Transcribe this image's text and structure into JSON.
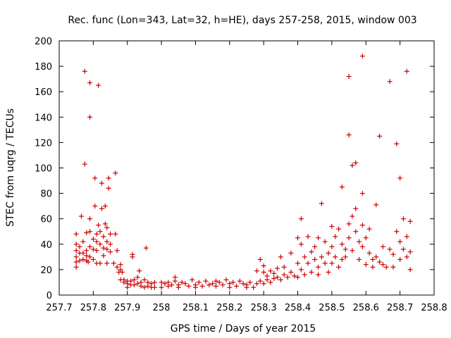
{
  "chart_data": {
    "type": "scatter",
    "title": "Rec. func (Lon=343, Lat=32, h=HE), days 257-258, 2015, window 003",
    "xlabel": "GPS time / Days of year 2015",
    "ylabel": "STEC from uqrg / TECUs",
    "xlim": [
      257.7,
      258.8
    ],
    "ylim": [
      0,
      200
    ],
    "xticks": [
      "257.7",
      "257.8",
      "257.9",
      "258",
      "258.1",
      "258.2",
      "258.3",
      "258.4",
      "258.5",
      "258.6",
      "258.7",
      "258.8"
    ],
    "yticks": [
      "0",
      "20",
      "40",
      "60",
      "80",
      "100",
      "120",
      "140",
      "160",
      "180",
      "200"
    ],
    "grid": false,
    "marker": "+",
    "color": "#cc0000",
    "series": [
      {
        "values": [
          [
            257.75,
            48
          ],
          [
            257.75,
            40
          ],
          [
            257.75,
            35
          ],
          [
            257.75,
            30
          ],
          [
            257.75,
            26
          ],
          [
            257.75,
            22
          ],
          [
            257.76,
            38
          ],
          [
            257.76,
            33
          ],
          [
            257.76,
            27
          ],
          [
            257.765,
            62
          ],
          [
            257.77,
            42
          ],
          [
            257.77,
            33
          ],
          [
            257.77,
            28
          ],
          [
            257.775,
            176
          ],
          [
            257.775,
            103
          ],
          [
            257.78,
            49
          ],
          [
            257.78,
            35
          ],
          [
            257.78,
            31
          ],
          [
            257.78,
            27
          ],
          [
            257.785,
            26
          ],
          [
            257.79,
            167
          ],
          [
            257.79,
            140
          ],
          [
            257.79,
            60
          ],
          [
            257.79,
            50
          ],
          [
            257.79,
            38
          ],
          [
            257.79,
            30
          ],
          [
            257.8,
            44
          ],
          [
            257.8,
            36
          ],
          [
            257.8,
            28
          ],
          [
            257.805,
            92
          ],
          [
            257.805,
            70
          ],
          [
            257.81,
            48
          ],
          [
            257.81,
            42
          ],
          [
            257.81,
            35
          ],
          [
            257.81,
            25
          ],
          [
            257.815,
            165
          ],
          [
            257.815,
            55
          ],
          [
            257.82,
            50
          ],
          [
            257.82,
            40
          ],
          [
            257.82,
            25
          ],
          [
            257.825,
            88
          ],
          [
            257.825,
            68
          ],
          [
            257.83,
            46
          ],
          [
            257.83,
            37
          ],
          [
            257.83,
            31
          ],
          [
            257.835,
            70
          ],
          [
            257.835,
            56
          ],
          [
            257.84,
            53
          ],
          [
            257.84,
            42
          ],
          [
            257.84,
            36
          ],
          [
            257.84,
            25
          ],
          [
            257.845,
            92
          ],
          [
            257.845,
            84
          ],
          [
            257.85,
            48
          ],
          [
            257.85,
            40
          ],
          [
            257.85,
            34
          ],
          [
            257.86,
            25
          ],
          [
            257.865,
            96
          ],
          [
            257.865,
            48
          ],
          [
            257.87,
            35
          ],
          [
            257.87,
            22
          ],
          [
            257.875,
            18
          ],
          [
            257.88,
            24
          ],
          [
            257.88,
            20
          ],
          [
            257.88,
            12
          ],
          [
            257.885,
            18
          ],
          [
            257.89,
            12
          ],
          [
            257.89,
            10
          ],
          [
            257.9,
            11
          ],
          [
            257.9,
            9
          ],
          [
            257.9,
            6
          ],
          [
            257.91,
            11
          ],
          [
            257.91,
            8
          ],
          [
            257.915,
            32
          ],
          [
            257.915,
            30
          ],
          [
            257.92,
            12
          ],
          [
            257.92,
            8
          ],
          [
            257.93,
            14
          ],
          [
            257.93,
            9
          ],
          [
            257.935,
            19
          ],
          [
            257.94,
            10
          ],
          [
            257.94,
            7
          ],
          [
            257.95,
            12
          ],
          [
            257.95,
            6
          ],
          [
            257.955,
            37
          ],
          [
            257.96,
            10
          ],
          [
            257.96,
            7
          ],
          [
            257.97,
            9
          ],
          [
            257.97,
            6
          ],
          [
            257.98,
            10
          ],
          [
            257.98,
            6
          ],
          [
            258.0,
            10
          ],
          [
            258.0,
            6
          ],
          [
            258.01,
            9
          ],
          [
            258.02,
            10
          ],
          [
            258.02,
            7
          ],
          [
            258.03,
            8
          ],
          [
            258.04,
            11
          ],
          [
            258.04,
            14
          ],
          [
            258.05,
            8
          ],
          [
            258.05,
            6
          ],
          [
            258.06,
            10
          ],
          [
            258.07,
            9
          ],
          [
            258.08,
            7
          ],
          [
            258.09,
            12
          ],
          [
            258.1,
            8
          ],
          [
            258.1,
            6
          ],
          [
            258.11,
            10
          ],
          [
            258.12,
            7
          ],
          [
            258.13,
            11
          ],
          [
            258.14,
            8
          ],
          [
            258.15,
            9
          ],
          [
            258.16,
            11
          ],
          [
            258.16,
            7
          ],
          [
            258.17,
            10
          ],
          [
            258.18,
            8
          ],
          [
            258.19,
            12
          ],
          [
            258.2,
            9
          ],
          [
            258.2,
            6
          ],
          [
            258.21,
            10
          ],
          [
            258.22,
            7
          ],
          [
            258.23,
            11
          ],
          [
            258.24,
            9
          ],
          [
            258.25,
            8
          ],
          [
            258.25,
            6
          ],
          [
            258.26,
            10
          ],
          [
            258.27,
            6
          ],
          [
            258.28,
            9
          ],
          [
            258.28,
            19
          ],
          [
            258.29,
            11
          ],
          [
            258.29,
            28
          ],
          [
            258.3,
            9
          ],
          [
            258.3,
            23
          ],
          [
            258.3,
            18
          ],
          [
            258.31,
            12
          ],
          [
            258.31,
            15
          ],
          [
            258.32,
            10
          ],
          [
            258.32,
            19
          ],
          [
            258.33,
            13
          ],
          [
            258.33,
            17
          ],
          [
            258.34,
            21
          ],
          [
            258.34,
            14
          ],
          [
            258.35,
            30
          ],
          [
            258.35,
            12
          ],
          [
            258.36,
            16
          ],
          [
            258.36,
            22
          ],
          [
            258.37,
            14
          ],
          [
            258.38,
            33
          ],
          [
            258.38,
            18
          ],
          [
            258.39,
            15
          ],
          [
            258.4,
            25
          ],
          [
            258.4,
            45
          ],
          [
            258.4,
            14
          ],
          [
            258.41,
            60
          ],
          [
            258.41,
            40
          ],
          [
            258.41,
            20
          ],
          [
            258.42,
            16
          ],
          [
            258.42,
            30
          ],
          [
            258.43,
            25
          ],
          [
            258.43,
            46
          ],
          [
            258.44,
            34
          ],
          [
            258.44,
            18
          ],
          [
            258.45,
            38
          ],
          [
            258.45,
            28
          ],
          [
            258.46,
            45
          ],
          [
            258.46,
            22
          ],
          [
            258.46,
            16
          ],
          [
            258.47,
            72
          ],
          [
            258.47,
            30
          ],
          [
            258.48,
            25
          ],
          [
            258.48,
            42
          ],
          [
            258.49,
            33
          ],
          [
            258.49,
            18
          ],
          [
            258.5,
            54
          ],
          [
            258.5,
            38
          ],
          [
            258.5,
            25
          ],
          [
            258.51,
            46
          ],
          [
            258.51,
            30
          ],
          [
            258.52,
            52
          ],
          [
            258.52,
            22
          ],
          [
            258.53,
            85
          ],
          [
            258.53,
            40
          ],
          [
            258.53,
            28
          ],
          [
            258.54,
            36
          ],
          [
            258.54,
            30
          ],
          [
            258.55,
            172
          ],
          [
            258.55,
            126
          ],
          [
            258.55,
            56
          ],
          [
            258.55,
            45
          ],
          [
            258.56,
            102
          ],
          [
            258.56,
            62
          ],
          [
            258.56,
            35
          ],
          [
            258.57,
            104
          ],
          [
            258.57,
            68
          ],
          [
            258.57,
            50
          ],
          [
            258.58,
            42
          ],
          [
            258.58,
            28
          ],
          [
            258.59,
            188
          ],
          [
            258.59,
            80
          ],
          [
            258.59,
            55
          ],
          [
            258.59,
            38
          ],
          [
            258.6,
            45
          ],
          [
            258.6,
            24
          ],
          [
            258.61,
            52
          ],
          [
            258.61,
            33
          ],
          [
            258.62,
            28
          ],
          [
            258.62,
            22
          ],
          [
            258.63,
            71
          ],
          [
            258.63,
            30
          ],
          [
            258.64,
            125
          ],
          [
            258.64,
            26
          ],
          [
            258.65,
            38
          ],
          [
            258.65,
            24
          ],
          [
            258.66,
            22
          ],
          [
            258.67,
            168
          ],
          [
            258.67,
            36
          ],
          [
            258.68,
            32
          ],
          [
            258.68,
            22
          ],
          [
            258.69,
            119
          ],
          [
            258.69,
            50
          ],
          [
            258.7,
            92
          ],
          [
            258.7,
            42
          ],
          [
            258.7,
            28
          ],
          [
            258.71,
            60
          ],
          [
            258.71,
            36
          ],
          [
            258.72,
            176
          ],
          [
            258.72,
            46
          ],
          [
            258.72,
            30
          ],
          [
            258.73,
            58
          ],
          [
            258.73,
            34
          ],
          [
            258.73,
            20
          ]
        ]
      }
    ]
  }
}
